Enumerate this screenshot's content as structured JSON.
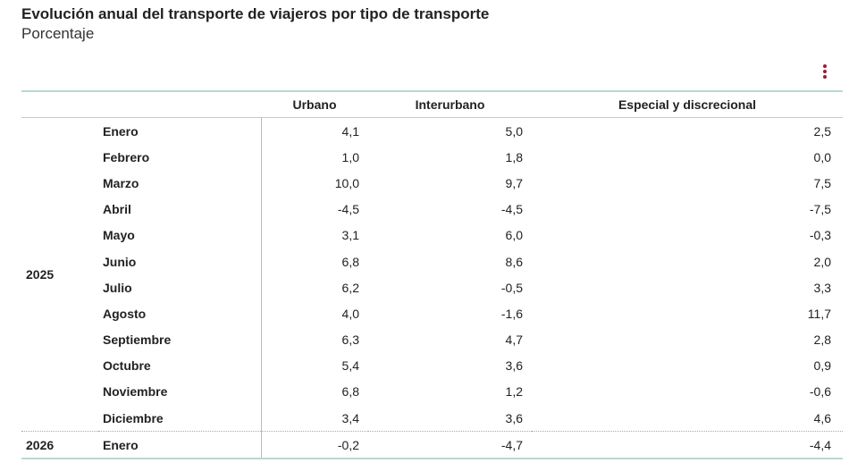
{
  "title": "Evolución anual del transporte de viajeros por tipo de transporte",
  "subtitle": "Porcentaje",
  "menu_icon": "vertical-ellipsis-icon",
  "accent_color": "#9b1b3a",
  "columns": [
    "",
    "",
    "Urbano",
    "Interurbano",
    "Especial y discrecional"
  ],
  "groups": [
    {
      "year": "2025",
      "rows": [
        {
          "month": "Enero",
          "values": [
            "4,1",
            "5,0",
            "2,5"
          ]
        },
        {
          "month": "Febrero",
          "values": [
            "1,0",
            "1,8",
            "0,0"
          ]
        },
        {
          "month": "Marzo",
          "values": [
            "10,0",
            "9,7",
            "7,5"
          ]
        },
        {
          "month": "Abril",
          "values": [
            "-4,5",
            "-4,5",
            "-7,5"
          ]
        },
        {
          "month": "Mayo",
          "values": [
            "3,1",
            "6,0",
            "-0,3"
          ]
        },
        {
          "month": "Junio",
          "values": [
            "6,8",
            "8,6",
            "2,0"
          ]
        },
        {
          "month": "Julio",
          "values": [
            "6,2",
            "-0,5",
            "3,3"
          ]
        },
        {
          "month": "Agosto",
          "values": [
            "4,0",
            "-1,6",
            "11,7"
          ]
        },
        {
          "month": "Septiembre",
          "values": [
            "6,3",
            "4,7",
            "2,8"
          ]
        },
        {
          "month": "Octubre",
          "values": [
            "5,4",
            "3,6",
            "0,9"
          ]
        },
        {
          "month": "Noviembre",
          "values": [
            "6,8",
            "1,2",
            "-0,6"
          ]
        },
        {
          "month": "Diciembre",
          "values": [
            "3,4",
            "3,6",
            "4,6"
          ]
        }
      ]
    },
    {
      "year": "2026",
      "rows": [
        {
          "month": "Enero",
          "values": [
            "-0,2",
            "-4,7",
            "-4,4"
          ]
        }
      ]
    }
  ]
}
